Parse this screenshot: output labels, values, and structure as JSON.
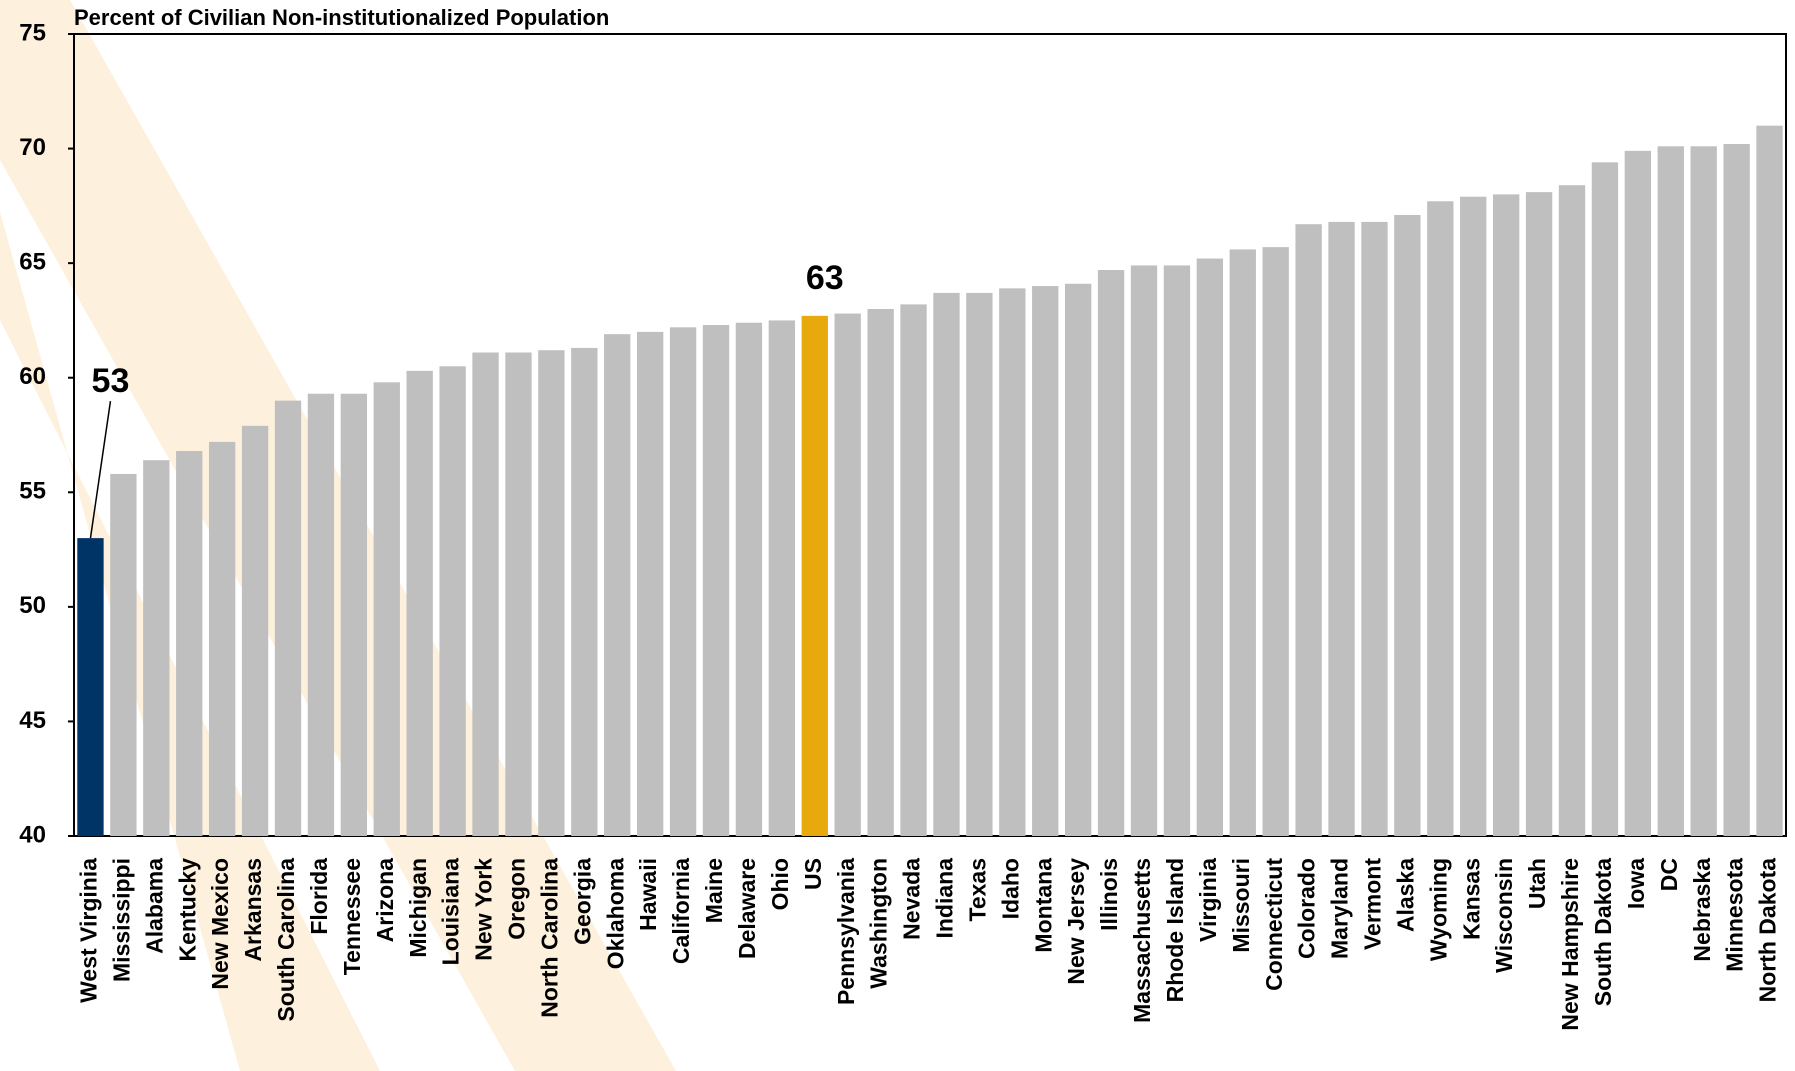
{
  "chart_data": {
    "type": "bar",
    "title": "Percent of Civilian Non-institutionalized Population",
    "categories": [
      "West Virginia",
      "Mississippi",
      "Alabama",
      "Kentucky",
      "New Mexico",
      "Arkansas",
      "South Carolina",
      "Florida",
      "Tennessee",
      "Arizona",
      "Michigan",
      "Louisiana",
      "New York",
      "Oregon",
      "North Carolina",
      "Georgia",
      "Oklahoma",
      "Hawaii",
      "California",
      "Maine",
      "Delaware",
      "Ohio",
      "US",
      "Pennsylvania",
      "Washington",
      "Nevada",
      "Indiana",
      "Texas",
      "Idaho",
      "Montana",
      "New Jersey",
      "Illinois",
      "Massachusetts",
      "Rhode Island",
      "Virginia",
      "Missouri",
      "Connecticut",
      "Colorado",
      "Maryland",
      "Vermont",
      "Alaska",
      "Wyoming",
      "Kansas",
      "Wisconsin",
      "Utah",
      "New Hampshire",
      "South Dakota",
      "Iowa",
      "DC",
      "Nebraska",
      "Minnesota",
      "North Dakota"
    ],
    "values": [
      53.0,
      55.8,
      56.4,
      56.8,
      57.2,
      57.9,
      59.0,
      59.3,
      59.3,
      59.8,
      60.3,
      60.5,
      61.1,
      61.1,
      61.2,
      61.3,
      61.9,
      62.0,
      62.2,
      62.3,
      62.4,
      62.5,
      62.7,
      62.8,
      63.0,
      63.2,
      63.7,
      63.7,
      63.9,
      64.0,
      64.1,
      64.7,
      64.9,
      64.9,
      65.2,
      65.6,
      65.7,
      66.7,
      66.8,
      66.8,
      67.1,
      67.7,
      67.9,
      68.0,
      68.1,
      68.4,
      69.4,
      69.9,
      70.1,
      70.1,
      70.2,
      71.0
    ],
    "value_labels": [
      "53",
      null,
      null,
      null,
      null,
      null,
      null,
      null,
      null,
      null,
      null,
      null,
      null,
      null,
      null,
      null,
      null,
      null,
      null,
      null,
      null,
      null,
      "63",
      null,
      null,
      null,
      null,
      null,
      null,
      null,
      null,
      null,
      null,
      null,
      null,
      null,
      null,
      null,
      null,
      null,
      null,
      null,
      null,
      null,
      null,
      null,
      null,
      null,
      null,
      null,
      null,
      null
    ],
    "color": "#bfbfbf",
    "highlight_colors": {
      "West Virginia": "#003366",
      "US": "#e8a90c"
    },
    "ylim": [
      40,
      75
    ],
    "yticks": [
      40,
      45,
      50,
      55,
      60,
      65,
      70,
      75
    ],
    "grid": false
  }
}
